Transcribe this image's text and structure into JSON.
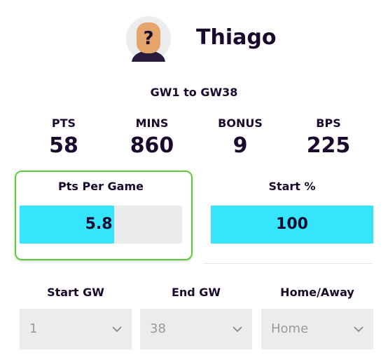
{
  "player": {
    "name": "Thiago",
    "avatar_symbol": "?"
  },
  "period": "GW1 to GW38",
  "stats": [
    {
      "label": "PTS",
      "value": 58
    },
    {
      "label": "MINS",
      "value": 860
    },
    {
      "label": "BONUS",
      "value": 9
    },
    {
      "label": "BPS",
      "value": 225
    }
  ],
  "meters": [
    {
      "label": "Pts Per Game",
      "value": 5.8,
      "range": [
        0,
        10
      ],
      "highlighted": true,
      "color": "#35e5fb"
    },
    {
      "label": "Start %",
      "value": 100,
      "range": [
        0,
        100
      ],
      "highlighted": false,
      "color": "#35e5fb"
    }
  ],
  "filters": [
    {
      "label": "Start GW",
      "value": "1"
    },
    {
      "label": "End GW",
      "value": "38"
    },
    {
      "label": "Home/Away",
      "value": "Home"
    }
  ]
}
